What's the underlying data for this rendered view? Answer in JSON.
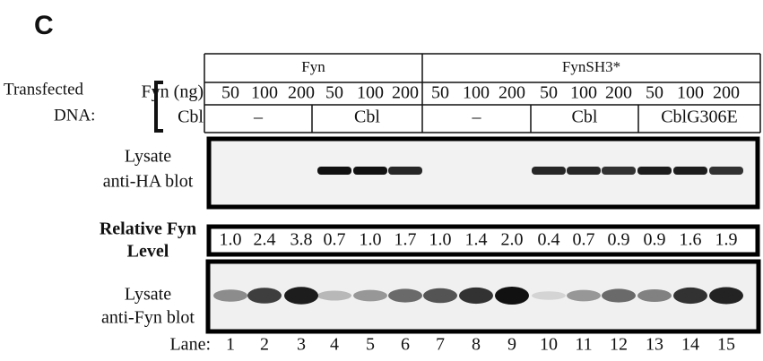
{
  "panel_label": "C",
  "row_label": {
    "line1": "Transfected",
    "line2": "DNA:"
  },
  "groups": [
    {
      "label": "Fyn"
    },
    {
      "label": "FynSH3*"
    }
  ],
  "fyn_ng": {
    "label": "Fyn (ng)",
    "values": [
      50,
      100,
      200,
      50,
      100,
      200,
      50,
      100,
      200,
      50,
      100,
      200,
      50,
      100,
      200
    ]
  },
  "cbl": {
    "label": "Cbl",
    "cells": [
      {
        "label": "–"
      },
      {
        "label": "Cbl"
      },
      {
        "label": "–"
      },
      {
        "label": "Cbl"
      },
      {
        "label": "CblG306E"
      }
    ]
  },
  "blots": [
    {
      "label_lines": [
        "Lysate",
        "anti-HA blot"
      ]
    },
    {
      "label_lines": [
        "Lysate",
        "anti-Fyn blot"
      ]
    }
  ],
  "relative_fyn": {
    "label_lines": [
      "Relative Fyn",
      "Level"
    ],
    "values": [
      "1.0",
      "2.4",
      "3.8",
      "0.7",
      "1.0",
      "1.7",
      "1.0",
      "1.4",
      "2.0",
      "0.4",
      "0.7",
      "0.9",
      "0.9",
      "1.6",
      "1.9"
    ]
  },
  "lanes": {
    "label": "Lane:",
    "values": [
      1,
      2,
      3,
      4,
      5,
      6,
      7,
      8,
      9,
      10,
      11,
      12,
      13,
      14,
      15
    ]
  }
}
